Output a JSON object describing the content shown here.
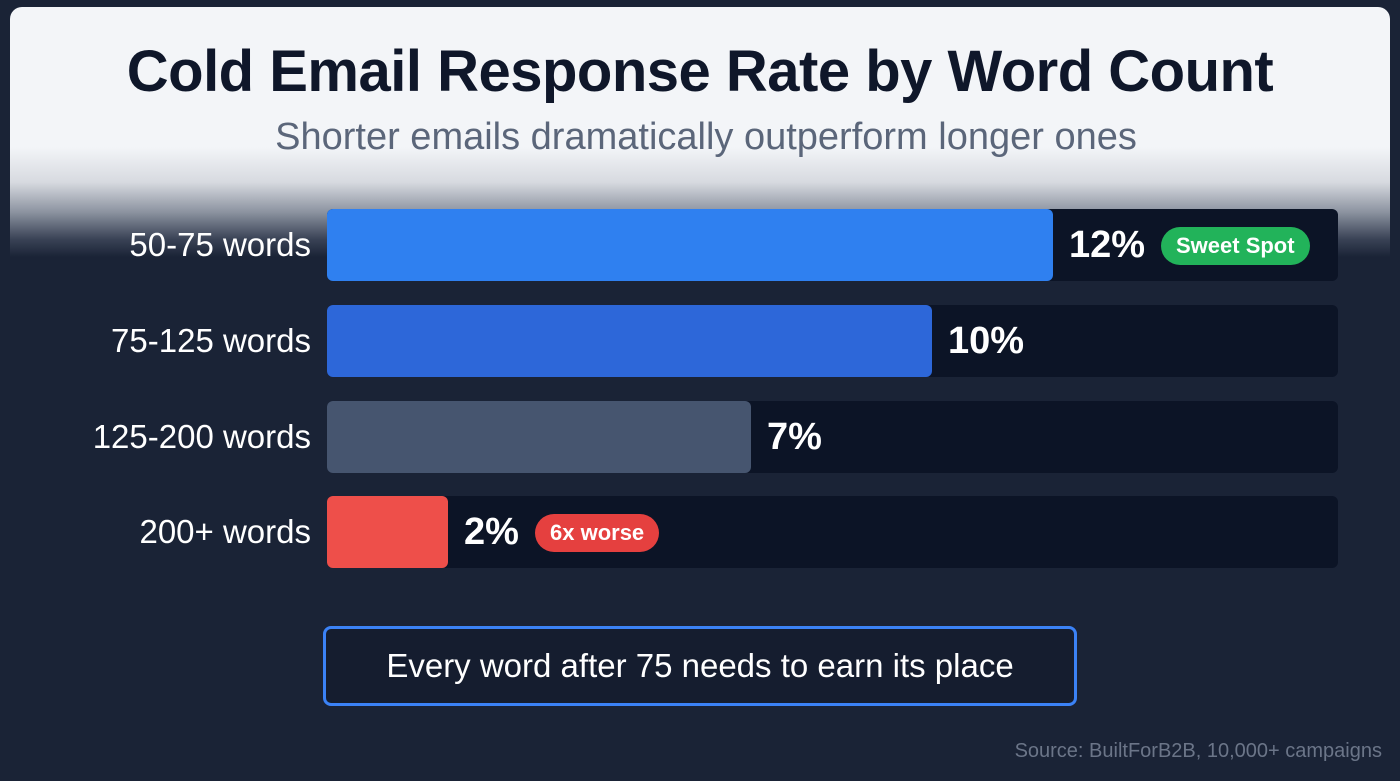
{
  "header": {
    "title": "Cold Email Response Rate by Word Count",
    "subtitle": "Shorter emails dramatically outperform longer ones"
  },
  "rows": [
    {
      "label": "50-75 words",
      "value_text": "12%",
      "value": 12,
      "color": "#2f80f0",
      "badge": "Sweet Spot",
      "badge_color": "#22b35a"
    },
    {
      "label": "75-125 words",
      "value_text": "10%",
      "value": 10,
      "color": "#2d67d9",
      "badge": null,
      "badge_color": null
    },
    {
      "label": "125-200 words",
      "value_text": "7%",
      "value": 7,
      "color": "#46556f",
      "badge": null,
      "badge_color": null
    },
    {
      "label": "200+ words",
      "value_text": "2%",
      "value": 2,
      "color": "#ee4f4a",
      "badge": "6x worse",
      "badge_color": "#e5403f"
    }
  ],
  "callout": {
    "text": "Every word after 75 needs to earn its place",
    "border_color": "#3b82f6"
  },
  "footer": {
    "source": "Source: BuiltForB2B, 10,000+ campaigns"
  },
  "chart_data": {
    "type": "bar",
    "orientation": "horizontal",
    "title": "Cold Email Response Rate by Word Count",
    "subtitle": "Shorter emails dramatically outperform longer ones",
    "categories": [
      "50-75 words",
      "75-125 words",
      "125-200 words",
      "200+ words"
    ],
    "values": [
      12,
      10,
      7,
      2
    ],
    "unit": "%",
    "xlabel": "",
    "ylabel": "",
    "xlim": [
      0,
      16.7
    ],
    "grid": false,
    "legend": null,
    "bar_colors": [
      "#2f80f0",
      "#2d67d9",
      "#46556f",
      "#ee4f4a"
    ],
    "annotations": [
      {
        "category": "50-75 words",
        "text": "Sweet Spot",
        "color": "#22b35a"
      },
      {
        "category": "200+ words",
        "text": "6x worse",
        "color": "#e5403f"
      },
      {
        "type": "callout",
        "text": "Every word after 75 needs to earn its place"
      }
    ],
    "source": "Source: BuiltForB2B, 10,000+ campaigns"
  }
}
